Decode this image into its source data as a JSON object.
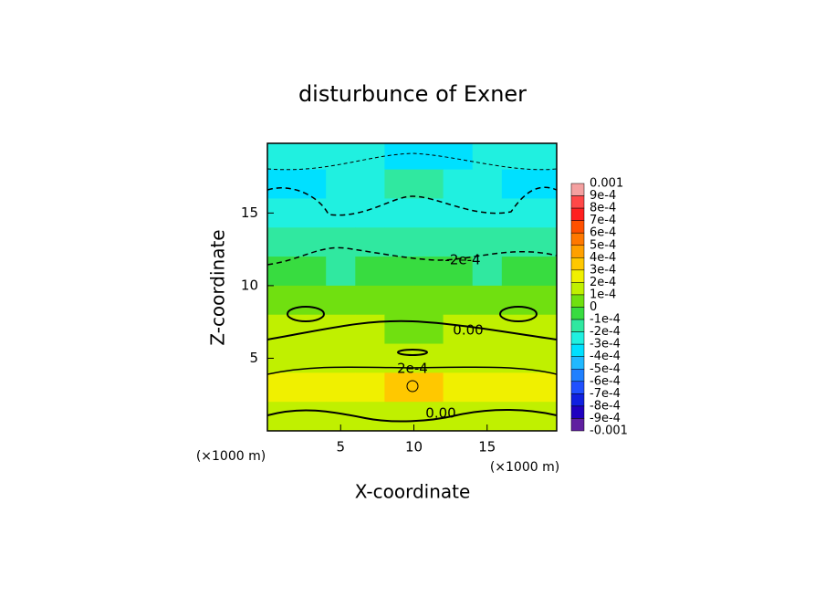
{
  "chart_data": {
    "type": "contour",
    "title": "disturbunce of Exner",
    "x_label": "X-coordinate",
    "y_label": "Z-coordinate",
    "x_unit": "(×1000 m)",
    "y_unit": "(×1000 m)",
    "xlim": [
      0,
      19.75
    ],
    "ylim": [
      0,
      19.8
    ],
    "xticks": [
      5,
      10,
      15
    ],
    "yticks": [
      5,
      10,
      15
    ],
    "field": {
      "x": [
        1,
        3,
        5,
        7,
        9,
        11,
        13,
        15,
        17,
        19
      ],
      "z": [
        19,
        17,
        15,
        13,
        11,
        9,
        7,
        5,
        3,
        1
      ],
      "values": [
        [
          -0.00025,
          -0.00025,
          -0.00025,
          -0.0003,
          -0.00035,
          -0.0004,
          -0.00035,
          -0.0003,
          -0.00025,
          -0.00025
        ],
        [
          -0.0004,
          -0.00035,
          -0.00025,
          -0.00022,
          -0.0002,
          -0.0002,
          -0.00022,
          -0.00025,
          -0.00035,
          -0.0004
        ],
        [
          -0.00025,
          -0.00025,
          -0.00022,
          -0.00025,
          -0.00025,
          -0.00025,
          -0.00025,
          -0.00022,
          -0.00025,
          -0.00025
        ],
        [
          -0.00015,
          -0.00015,
          -0.00015,
          -0.00015,
          -0.0002,
          -0.0002,
          -0.00015,
          -0.00015,
          -0.00015,
          -0.00015
        ],
        [
          -5e-05,
          -5e-05,
          -0.00015,
          -0.0001,
          -5e-05,
          -5e-05,
          -0.0001,
          -0.00015,
          -5e-05,
          -5e-05
        ],
        [
          5e-05,
          5e-05,
          5e-05,
          5e-05,
          5e-05,
          5e-05,
          5e-05,
          5e-05,
          5e-05,
          5e-05
        ],
        [
          0.00015,
          0.00015,
          0.0001,
          0.0001,
          5e-05,
          5e-05,
          0.0001,
          0.0001,
          0.00015,
          0.00015
        ],
        [
          0.00015,
          0.00015,
          0.00015,
          0.00015,
          0.00015,
          0.00015,
          0.00015,
          0.00015,
          0.00015,
          0.00015
        ],
        [
          0.00025,
          0.00022,
          0.00022,
          0.00025,
          0.0003,
          0.0003,
          0.00025,
          0.00022,
          0.00022,
          0.00025
        ],
        [
          0.00015,
          0.00015,
          0.00015,
          0.00012,
          0.00015,
          0.00015,
          0.00012,
          0.00015,
          0.00015,
          0.00015
        ]
      ]
    },
    "contour_labels": [
      "-2e-4",
      "0.00",
      "2e-4",
      "0.00"
    ],
    "colorbar": {
      "ticks": [
        0.001,
        {
          "value": 0.0009,
          "label": "9e-4"
        },
        {
          "value": 0.0008,
          "label": "8e-4"
        },
        {
          "value": 0.0007,
          "label": "7e-4"
        },
        {
          "value": 0.0006,
          "label": "6e-4"
        },
        {
          "value": 0.0005,
          "label": "5e-4"
        },
        {
          "value": 0.0004,
          "label": "4e-4"
        },
        {
          "value": 0.0003,
          "label": "3e-4"
        },
        {
          "value": 0.0002,
          "label": "2e-4"
        },
        {
          "value": 0.0001,
          "label": "1e-4"
        },
        0,
        {
          "value": -0.0001,
          "label": "-1e-4"
        },
        {
          "value": -0.0002,
          "label": "-2e-4"
        },
        {
          "value": -0.0003,
          "label": "-3e-4"
        },
        {
          "value": -0.0004,
          "label": "-4e-4"
        },
        {
          "value": -0.0005,
          "label": "-5e-4"
        },
        {
          "value": -0.0006,
          "label": "-6e-4"
        },
        {
          "value": -0.0007,
          "label": "-7e-4"
        },
        {
          "value": -0.0008,
          "label": "-8e-4"
        },
        {
          "value": -0.0009,
          "label": "-9e-4"
        },
        -0.001
      ],
      "colors": [
        "#f4a0a0",
        "#ff4848",
        "#ff2020",
        "#ff5000",
        "#ff7800",
        "#ffa000",
        "#ffc800",
        "#f0f000",
        "#c0f000",
        "#70e010",
        "#38dc40",
        "#30e8a0",
        "#20f0e0",
        "#00e0ff",
        "#20b8ff",
        "#2080ff",
        "#2050ff",
        "#1020e0",
        "#2000c0",
        "#6020a0"
      ]
    }
  }
}
